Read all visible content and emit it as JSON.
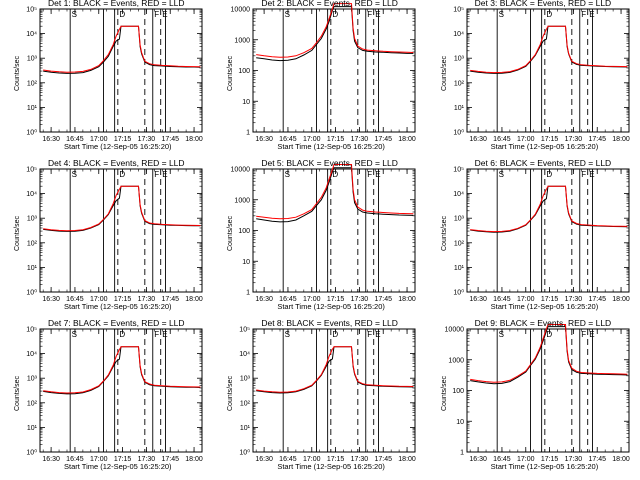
{
  "chart_data": {
    "type": "line",
    "x_axis": {
      "xlabel": "Start Time (12-Sep-05 16:25:20)",
      "xlim_minutes_after_1625": [
        -2,
        100
      ],
      "ticks": [
        {
          "label": "16:30",
          "minute": 5
        },
        {
          "label": "16:45",
          "minute": 20
        },
        {
          "label": "17:00",
          "minute": 35
        },
        {
          "label": "17:15",
          "minute": 50
        },
        {
          "label": "17:30",
          "minute": 65
        },
        {
          "label": "17:45",
          "minute": 80
        },
        {
          "label": "18:00",
          "minute": 95
        }
      ]
    },
    "ylabel": "Counts/sec",
    "series_names": [
      "Events (BLACK)",
      "LLD (RED)"
    ],
    "series_colors": {
      "events": "#000000",
      "lld": "#ff0000"
    },
    "time_minutes": [
      0,
      5,
      10,
      15,
      20,
      25,
      30,
      35,
      38,
      41,
      44,
      46,
      48,
      49,
      60,
      61,
      62,
      64,
      67,
      70,
      75,
      80,
      85,
      90,
      95,
      99
    ],
    "vertical_markers": [
      {
        "label": "",
        "minute": 17,
        "style": "solid"
      },
      {
        "label": "S",
        "minute": 17,
        "style": "none"
      },
      {
        "label": "",
        "minute": 38,
        "style": "solid"
      },
      {
        "label": "",
        "minute": 45,
        "style": "solid"
      },
      {
        "label": "",
        "minute": 47,
        "style": "dashed"
      },
      {
        "label": "D",
        "minute": 47,
        "style": "none"
      },
      {
        "label": "",
        "minute": 64,
        "style": "dashed"
      },
      {
        "label": "",
        "minute": 69,
        "style": "solid"
      },
      {
        "label": "F",
        "minute": 69,
        "style": "none"
      },
      {
        "label": "",
        "minute": 74,
        "style": "dashed"
      },
      {
        "label": "E",
        "minute": 74,
        "style": "none"
      },
      {
        "label": "",
        "minute": 77,
        "style": "solid"
      }
    ],
    "panels": [
      {
        "title": "Det 1: BLACK = Events, RED = LLD",
        "ylim": [
          1,
          100000
        ],
        "yticks": [
          {
            "value": 1,
            "label": "10⁰"
          },
          {
            "value": 10,
            "label": "10¹"
          },
          {
            "value": 100,
            "label": "10²"
          },
          {
            "value": 1000,
            "label": "10³"
          },
          {
            "value": 10000,
            "label": "10⁴"
          },
          {
            "value": 100000,
            "label": "10⁵"
          }
        ],
        "events": [
          300,
          270,
          250,
          240,
          245,
          260,
          320,
          450,
          700,
          1200,
          3000,
          5000,
          6000,
          20000,
          20000,
          3000,
          1500,
          700,
          550,
          500,
          480,
          460,
          450,
          440,
          440,
          430
        ],
        "lld": [
          330,
          300,
          280,
          270,
          275,
          290,
          350,
          500,
          800,
          1400,
          3500,
          8000,
          15000,
          20000,
          20000,
          3500,
          1700,
          750,
          600,
          540,
          510,
          490,
          470,
          460,
          455,
          450
        ]
      },
      {
        "title": "Det 2: BLACK = Events, RED = LLD",
        "ylim": [
          1,
          10000
        ],
        "yticks": [
          {
            "value": 1,
            "label": "1"
          },
          {
            "value": 10,
            "label": "10"
          },
          {
            "value": 100,
            "label": "100"
          },
          {
            "value": 1000,
            "label": "1000"
          },
          {
            "value": 10000,
            "label": "10000"
          }
        ],
        "events": [
          260,
          240,
          220,
          210,
          215,
          240,
          320,
          450,
          700,
          1100,
          2200,
          4000,
          9000,
          12000,
          12000,
          2000,
          900,
          550,
          450,
          420,
          400,
          390,
          380,
          370,
          360,
          360
        ],
        "lld": [
          330,
          300,
          280,
          270,
          275,
          300,
          380,
          520,
          800,
          1300,
          2600,
          5000,
          10000,
          15000,
          15000,
          2400,
          1100,
          620,
          500,
          460,
          440,
          420,
          410,
          400,
          390,
          385
        ]
      },
      {
        "title": "Det 3: BLACK = Events, RED = LLD",
        "ylim": [
          1,
          100000
        ],
        "yticks": [
          {
            "value": 1,
            "label": "10⁰"
          },
          {
            "value": 10,
            "label": "10¹"
          },
          {
            "value": 100,
            "label": "10²"
          },
          {
            "value": 1000,
            "label": "10³"
          },
          {
            "value": 10000,
            "label": "10⁴"
          },
          {
            "value": 100000,
            "label": "10⁵"
          }
        ],
        "events": [
          300,
          270,
          250,
          240,
          245,
          265,
          330,
          470,
          750,
          1300,
          3000,
          5000,
          6000,
          20000,
          20000,
          3000,
          1500,
          700,
          560,
          510,
          490,
          470,
          460,
          450,
          445,
          440
        ],
        "lld": [
          320,
          290,
          270,
          260,
          265,
          285,
          350,
          500,
          800,
          1400,
          3500,
          8000,
          15000,
          20000,
          20000,
          3400,
          1600,
          750,
          600,
          540,
          510,
          490,
          475,
          465,
          460,
          455
        ]
      },
      {
        "title": "Det 4: BLACK = Events, RED = LLD",
        "ylim": [
          1,
          100000
        ],
        "yticks": [
          {
            "value": 1,
            "label": "10⁰"
          },
          {
            "value": 10,
            "label": "10¹"
          },
          {
            "value": 100,
            "label": "10²"
          },
          {
            "value": 1000,
            "label": "10³"
          },
          {
            "value": 10000,
            "label": "10⁴"
          },
          {
            "value": 100000,
            "label": "10⁵"
          }
        ],
        "events": [
          350,
          320,
          300,
          290,
          295,
          320,
          400,
          550,
          850,
          1400,
          3200,
          5200,
          6500,
          20000,
          20000,
          3200,
          1600,
          750,
          600,
          560,
          540,
          520,
          510,
          500,
          495,
          490
        ],
        "lld": [
          370,
          340,
          320,
          310,
          315,
          340,
          420,
          580,
          900,
          1500,
          3800,
          8500,
          15000,
          20000,
          20000,
          3600,
          1750,
          800,
          640,
          590,
          560,
          540,
          525,
          515,
          510,
          505
        ]
      },
      {
        "title": "Det 5: BLACK = Events, RED = LLD",
        "ylim": [
          1,
          10000
        ],
        "yticks": [
          {
            "value": 1,
            "label": "1"
          },
          {
            "value": 10,
            "label": "10"
          },
          {
            "value": 100,
            "label": "100"
          },
          {
            "value": 1000,
            "label": "1000"
          },
          {
            "value": 10000,
            "label": "10000"
          }
        ],
        "events": [
          240,
          220,
          200,
          190,
          195,
          220,
          300,
          420,
          650,
          1000,
          2000,
          3800,
          8000,
          11000,
          11000,
          1800,
          800,
          500,
          400,
          370,
          350,
          340,
          330,
          320,
          315,
          310
        ],
        "lld": [
          290,
          270,
          250,
          240,
          245,
          270,
          350,
          480,
          750,
          1200,
          2400,
          4800,
          9500,
          14000,
          14000,
          2200,
          1000,
          580,
          460,
          420,
          400,
          385,
          370,
          360,
          355,
          350
        ]
      },
      {
        "title": "Det 6: BLACK = Events, RED = LLD",
        "ylim": [
          1,
          100000
        ],
        "yticks": [
          {
            "value": 1,
            "label": "10⁰"
          },
          {
            "value": 10,
            "label": "10¹"
          },
          {
            "value": 100,
            "label": "10²"
          },
          {
            "value": 1000,
            "label": "10³"
          },
          {
            "value": 10000,
            "label": "10⁴"
          },
          {
            "value": 100000,
            "label": "10⁵"
          }
        ],
        "events": [
          330,
          300,
          280,
          270,
          275,
          300,
          370,
          520,
          820,
          1350,
          3100,
          5000,
          6200,
          20000,
          20000,
          3100,
          1500,
          720,
          570,
          520,
          500,
          480,
          470,
          460,
          455,
          450
        ],
        "lld": [
          345,
          315,
          295,
          285,
          290,
          315,
          390,
          545,
          860,
          1450,
          3600,
          8200,
          15000,
          20000,
          20000,
          3500,
          1650,
          770,
          610,
          550,
          525,
          500,
          485,
          475,
          470,
          465
        ]
      },
      {
        "title": "Det 7: BLACK = Events, RED = LLD",
        "ylim": [
          1,
          100000
        ],
        "yticks": [
          {
            "value": 1,
            "label": "10⁰"
          },
          {
            "value": 10,
            "label": "10¹"
          },
          {
            "value": 100,
            "label": "10²"
          },
          {
            "value": 1000,
            "label": "10³"
          },
          {
            "value": 10000,
            "label": "10⁴"
          },
          {
            "value": 100000,
            "label": "10⁵"
          }
        ],
        "events": [
          290,
          260,
          240,
          230,
          235,
          255,
          320,
          460,
          740,
          1250,
          2900,
          4800,
          6000,
          19000,
          19000,
          2900,
          1400,
          680,
          540,
          490,
          470,
          450,
          440,
          430,
          425,
          420
        ],
        "lld": [
          310,
          280,
          260,
          250,
          255,
          275,
          345,
          490,
          780,
          1350,
          3300,
          7800,
          14500,
          19000,
          19000,
          3300,
          1550,
          720,
          580,
          520,
          495,
          475,
          460,
          450,
          445,
          440
        ]
      },
      {
        "title": "Det 8: BLACK = Events, RED = LLD",
        "ylim": [
          1,
          100000
        ],
        "yticks": [
          {
            "value": 1,
            "label": "10⁰"
          },
          {
            "value": 10,
            "label": "10¹"
          },
          {
            "value": 100,
            "label": "10²"
          },
          {
            "value": 1000,
            "label": "10³"
          },
          {
            "value": 10000,
            "label": "10⁴"
          },
          {
            "value": 100000,
            "label": "10⁵"
          }
        ],
        "events": [
          310,
          280,
          260,
          250,
          255,
          280,
          350,
          490,
          780,
          1300,
          3000,
          5000,
          6100,
          19000,
          19000,
          3000,
          1450,
          700,
          560,
          510,
          490,
          470,
          460,
          450,
          445,
          440
        ],
        "lld": [
          330,
          300,
          280,
          270,
          275,
          300,
          375,
          520,
          820,
          1400,
          3500,
          8000,
          15000,
          19000,
          19000,
          3400,
          1600,
          740,
          600,
          540,
          515,
          495,
          480,
          470,
          465,
          460
        ]
      },
      {
        "title": "Det 9: BLACK = Events, RED = LLD",
        "ylim": [
          1,
          10000
        ],
        "yticks": [
          {
            "value": 1,
            "label": "1"
          },
          {
            "value": 10,
            "label": "10"
          },
          {
            "value": 100,
            "label": "100"
          },
          {
            "value": 1000,
            "label": "1000"
          },
          {
            "value": 10000,
            "label": "10000"
          }
        ],
        "events": [
          210,
          190,
          175,
          165,
          170,
          195,
          270,
          400,
          650,
          1050,
          2200,
          4200,
          8500,
          12000,
          12000,
          1900,
          850,
          480,
          390,
          360,
          350,
          340,
          335,
          330,
          325,
          320
        ],
        "lld": [
          230,
          210,
          195,
          185,
          190,
          215,
          295,
          430,
          700,
          1150,
          2500,
          5000,
          10000,
          14000,
          14000,
          2200,
          950,
          530,
          420,
          385,
          370,
          360,
          355,
          350,
          345,
          340
        ]
      }
    ]
  }
}
